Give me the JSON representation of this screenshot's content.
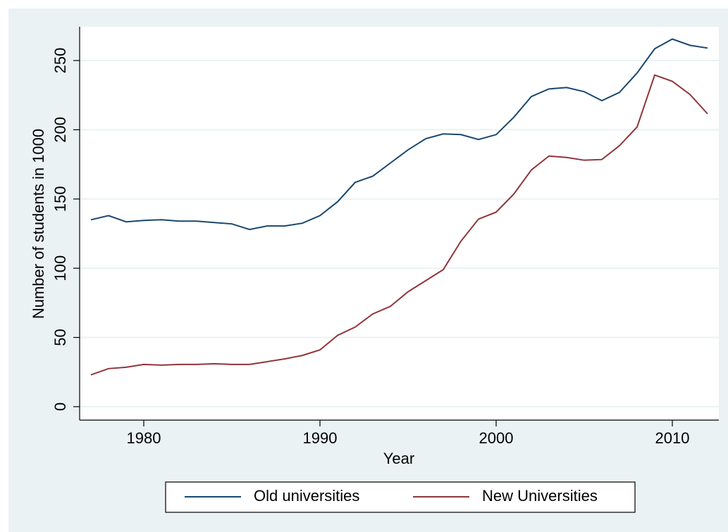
{
  "chart_data": {
    "type": "line",
    "x_label": "Year",
    "y_label": "Number of students in 1000",
    "x": [
      1977,
      1978,
      1979,
      1980,
      1981,
      1982,
      1983,
      1984,
      1985,
      1986,
      1987,
      1988,
      1989,
      1990,
      1991,
      1992,
      1993,
      1994,
      1995,
      1996,
      1997,
      1998,
      1999,
      2000,
      2001,
      2002,
      2003,
      2004,
      2005,
      2006,
      2007,
      2008,
      2009,
      2010,
      2011,
      2012
    ],
    "series": [
      {
        "name": "Old universities",
        "color": "#1a476f",
        "values": [
          135,
          138,
          133.5,
          134.5,
          135,
          134,
          134,
          133,
          132,
          128,
          130.5,
          130.5,
          132.5,
          138,
          148,
          162,
          166.5,
          176,
          185.5,
          193.5,
          197,
          196.5,
          193,
          196.5,
          209,
          224,
          229.5,
          230.5,
          227.5,
          221,
          227,
          241,
          258.5,
          265.5,
          261,
          259
        ]
      },
      {
        "name": "New Universities",
        "color": "#90353b",
        "values": [
          23,
          27.5,
          28.5,
          30.5,
          30,
          30.5,
          30.5,
          31,
          30.5,
          30.5,
          32.5,
          34.5,
          37,
          41,
          51.5,
          57.5,
          67,
          72.5,
          83,
          91,
          99,
          119.5,
          135.5,
          140.5,
          153.5,
          171,
          181,
          180,
          178,
          178.5,
          188.5,
          202,
          239.5,
          235,
          225.5,
          211.5
        ]
      }
    ],
    "xlim": [
      1976.36,
      2012.64
    ],
    "xticks": [
      1980,
      1990,
      2000,
      2010
    ],
    "ylim": [
      -9.7,
      274.4
    ],
    "yticks": [
      0,
      50,
      100,
      150,
      200,
      250
    ],
    "grid": true
  }
}
